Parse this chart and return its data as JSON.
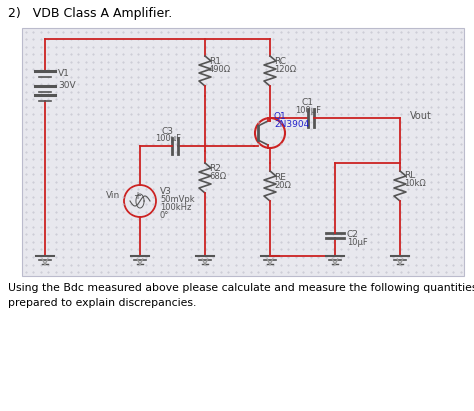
{
  "title": "2)   VDB Class A Amplifier.",
  "bottom_text1": "Using the Bdc measured above please calculate and measure the following quantities.  Be",
  "bottom_text2": "prepared to explain discrepancies.",
  "bg_color": "#ffffff",
  "circuit_bg": "#e8e8ee",
  "dot_color": "#c0c0cc",
  "wire_color": "#cc2222",
  "comp_color": "#555555",
  "transistor_label_color": "#2222cc",
  "fig_bg": "#ffffff",
  "gray_wire": "#999999"
}
